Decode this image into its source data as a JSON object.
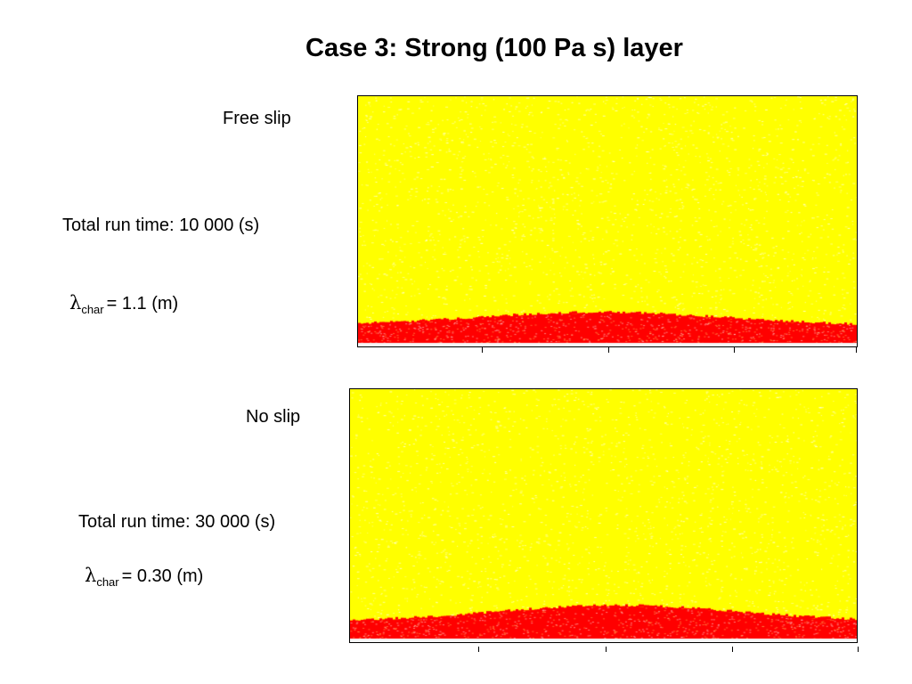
{
  "slide": {
    "title": "Case 3: Strong (100 Pa s) layer"
  },
  "cases": [
    {
      "label": "Free slip",
      "run_time": "Total run time: 10 000 (s)",
      "lambda_symbol": "λ",
      "lambda_sub": "char",
      "lambda_value": "= 1.1 (m)",
      "layer_shape": "single broad fold",
      "colors": {
        "matrix": "#ffff00",
        "layer": "#ff0000"
      }
    },
    {
      "label": "No slip",
      "run_time": "Total run time: 30 000 (s)",
      "lambda_symbol": "λ",
      "lambda_sub": "char",
      "lambda_value": "= 0.30 (m)",
      "layer_shape": "single broad fold",
      "colors": {
        "matrix": "#ffff00",
        "layer": "#ff0000"
      }
    }
  ]
}
